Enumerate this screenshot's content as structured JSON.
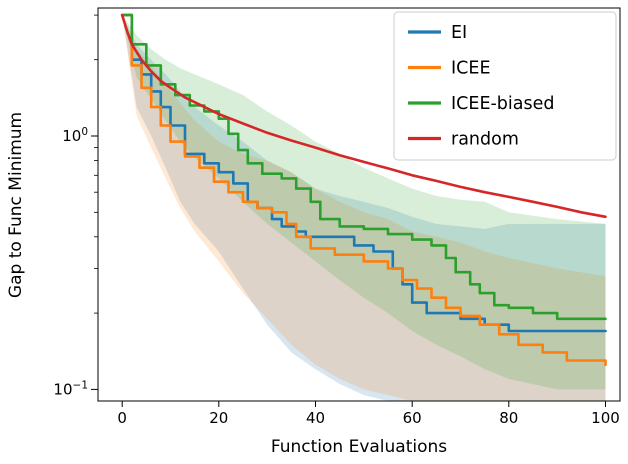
{
  "chart_data": {
    "type": "line",
    "title": "",
    "xlabel": "Function Evaluations",
    "ylabel": "Gap to Func Minimum",
    "yscale": "log",
    "xlim": [
      -5,
      103
    ],
    "ylim": [
      0.09,
      3.2
    ],
    "xticks": [
      0,
      20,
      40,
      60,
      80,
      100
    ],
    "ytick_exponents": [
      0,
      -1
    ],
    "y_minor_ticks": [
      3,
      2,
      0.9,
      0.8,
      0.7,
      0.6,
      0.5,
      0.4,
      0.3,
      0.2
    ],
    "grid": false,
    "legend_position": "upper right",
    "band_opacity": 0.18,
    "band_x": [
      0,
      3,
      6,
      9,
      12,
      15,
      20,
      25,
      30,
      35,
      40,
      45,
      50,
      55,
      60,
      65,
      70,
      75,
      80,
      90,
      100
    ],
    "series": [
      {
        "name": "EI",
        "color": "#1f77b4",
        "step": true,
        "x": [
          0,
          2,
          4,
          6,
          8,
          10,
          13,
          17,
          20,
          23,
          26,
          28,
          31,
          33,
          36,
          38,
          48,
          52,
          56,
          58,
          60,
          63,
          70,
          75,
          80,
          100
        ],
        "y": [
          3.0,
          2.0,
          1.75,
          1.5,
          1.3,
          1.1,
          0.85,
          0.78,
          0.72,
          0.65,
          0.55,
          0.52,
          0.47,
          0.44,
          0.42,
          0.4,
          0.37,
          0.35,
          0.3,
          0.26,
          0.22,
          0.2,
          0.19,
          0.18,
          0.17,
          0.17
        ],
        "band_hi": [
          3.0,
          2.3,
          2.0,
          1.75,
          1.5,
          1.3,
          1.1,
          0.95,
          0.8,
          0.72,
          0.62,
          0.58,
          0.55,
          0.52,
          0.48,
          0.45,
          0.44,
          0.43,
          0.45,
          0.45,
          0.45
        ],
        "band_lo": [
          3.0,
          1.3,
          1.0,
          0.75,
          0.55,
          0.45,
          0.35,
          0.25,
          0.18,
          0.14,
          0.12,
          0.105,
          0.095,
          0.09,
          0.09,
          0.09,
          0.09,
          0.09,
          0.09,
          0.09,
          0.09
        ]
      },
      {
        "name": "ICEE",
        "color": "#ff7f0e",
        "step": true,
        "x": [
          0,
          2,
          4,
          6,
          8,
          10,
          13,
          16,
          19,
          22,
          25,
          28,
          31,
          34,
          36,
          39,
          44,
          50,
          55,
          58,
          61,
          64,
          67,
          70,
          74,
          78,
          82,
          87,
          92,
          100
        ],
        "y": [
          3.0,
          1.9,
          1.55,
          1.3,
          1.1,
          0.95,
          0.83,
          0.75,
          0.66,
          0.6,
          0.55,
          0.52,
          0.5,
          0.45,
          0.4,
          0.36,
          0.34,
          0.32,
          0.3,
          0.27,
          0.25,
          0.23,
          0.21,
          0.195,
          0.18,
          0.165,
          0.15,
          0.14,
          0.13,
          0.125
        ],
        "band_hi": [
          3.0,
          2.2,
          1.9,
          1.6,
          1.35,
          1.15,
          0.95,
          0.85,
          0.8,
          0.72,
          0.62,
          0.55,
          0.5,
          0.47,
          0.42,
          0.4,
          0.38,
          0.35,
          0.33,
          0.3,
          0.28
        ],
        "band_lo": [
          3.0,
          1.2,
          0.9,
          0.68,
          0.52,
          0.42,
          0.32,
          0.24,
          0.19,
          0.15,
          0.125,
          0.11,
          0.1,
          0.095,
          0.09,
          0.09,
          0.09,
          0.09,
          0.09,
          0.09,
          0.09
        ]
      },
      {
        "name": "ICEE-biased",
        "color": "#2ca02c",
        "step": true,
        "x": [
          0,
          2,
          5,
          8,
          11,
          14,
          17,
          20,
          22,
          24,
          26,
          29,
          33,
          36,
          39,
          41,
          45,
          50,
          55,
          60,
          64,
          67,
          69,
          72,
          74,
          77,
          80,
          85,
          90,
          100
        ],
        "y": [
          3.0,
          2.3,
          1.9,
          1.6,
          1.45,
          1.32,
          1.25,
          1.17,
          1.02,
          0.88,
          0.78,
          0.71,
          0.68,
          0.62,
          0.55,
          0.47,
          0.44,
          0.43,
          0.41,
          0.39,
          0.37,
          0.33,
          0.29,
          0.26,
          0.24,
          0.215,
          0.21,
          0.2,
          0.19,
          0.19
        ],
        "band_hi": [
          3.0,
          2.5,
          2.2,
          2.0,
          1.85,
          1.75,
          1.6,
          1.45,
          1.25,
          1.1,
          0.95,
          0.85,
          0.75,
          0.68,
          0.62,
          0.58,
          0.56,
          0.55,
          0.5,
          0.47,
          0.45
        ],
        "band_lo": [
          3.0,
          1.7,
          1.4,
          1.15,
          0.95,
          0.82,
          0.68,
          0.55,
          0.45,
          0.38,
          0.32,
          0.27,
          0.23,
          0.2,
          0.17,
          0.15,
          0.135,
          0.12,
          0.11,
          0.1,
          0.1
        ]
      },
      {
        "name": "random",
        "color": "#d62728",
        "step": false,
        "x": [
          0,
          1,
          2,
          4,
          6,
          8,
          10,
          13,
          16,
          20,
          25,
          30,
          35,
          40,
          45,
          50,
          55,
          60,
          65,
          70,
          75,
          80,
          85,
          90,
          95,
          100
        ],
        "y": [
          3.0,
          2.6,
          2.3,
          2.0,
          1.8,
          1.65,
          1.55,
          1.42,
          1.33,
          1.22,
          1.12,
          1.03,
          0.96,
          0.9,
          0.84,
          0.79,
          0.745,
          0.7,
          0.665,
          0.63,
          0.6,
          0.575,
          0.55,
          0.525,
          0.5,
          0.48
        ]
      }
    ]
  }
}
